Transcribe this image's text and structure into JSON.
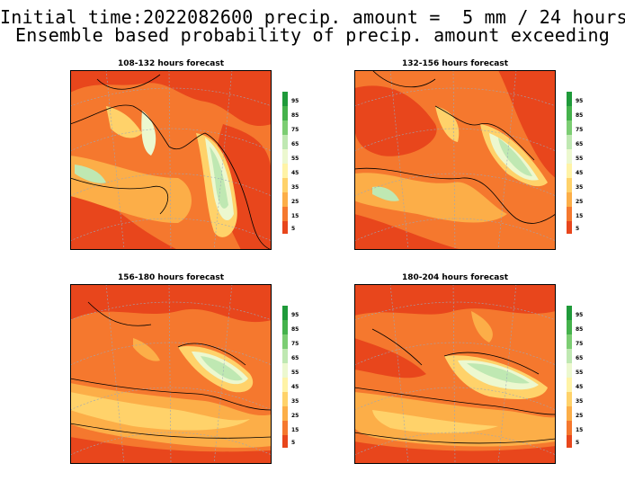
{
  "title_line1": "Initial time:2022082600 precip. amount =  5 mm / 24 hours",
  "title_line2": "Ensemble based probability of precip. amount exceeding",
  "panels": [
    {
      "title": "108-132 hours forecast"
    },
    {
      "title": "132-156 hours forecast"
    },
    {
      "title": "156-180 hours forecast"
    },
    {
      "title": "180-204 hours forecast"
    }
  ],
  "colorbar": {
    "labels": [
      "95",
      "85",
      "75",
      "65",
      "55",
      "45",
      "35",
      "25",
      "15",
      "5"
    ],
    "colors": [
      "#1f9a3a",
      "#45b24c",
      "#7ccd73",
      "#bfe8b2",
      "#ecf8cf",
      "#fff3a6",
      "#ffd26a",
      "#fcae48",
      "#f5782e",
      "#e8461c"
    ]
  }
}
